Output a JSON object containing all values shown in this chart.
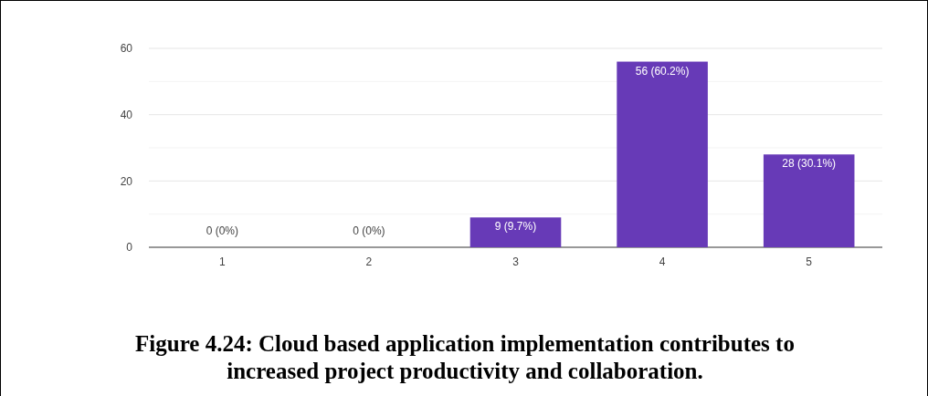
{
  "chart_data": {
    "type": "bar",
    "title": "Figure 4.24: Cloud based application implementation contributes to increased project productivity and collaboration.",
    "categories": [
      "1",
      "2",
      "3",
      "4",
      "5"
    ],
    "values": [
      0,
      0,
      9,
      56,
      28
    ],
    "value_labels": [
      "0 (0%)",
      "0 (0%)",
      "9 (9.7%)",
      "56 (60.2%)",
      "28 (30.1%)"
    ],
    "color": "#673ab7",
    "ylim": [
      0,
      60
    ],
    "yticks": [
      0,
      {
        "value": 10,
        "label": null
      },
      20,
      {
        "value": 30,
        "label": null
      },
      40,
      {
        "value": 50,
        "label": null
      },
      60
    ],
    "grid": "y"
  }
}
